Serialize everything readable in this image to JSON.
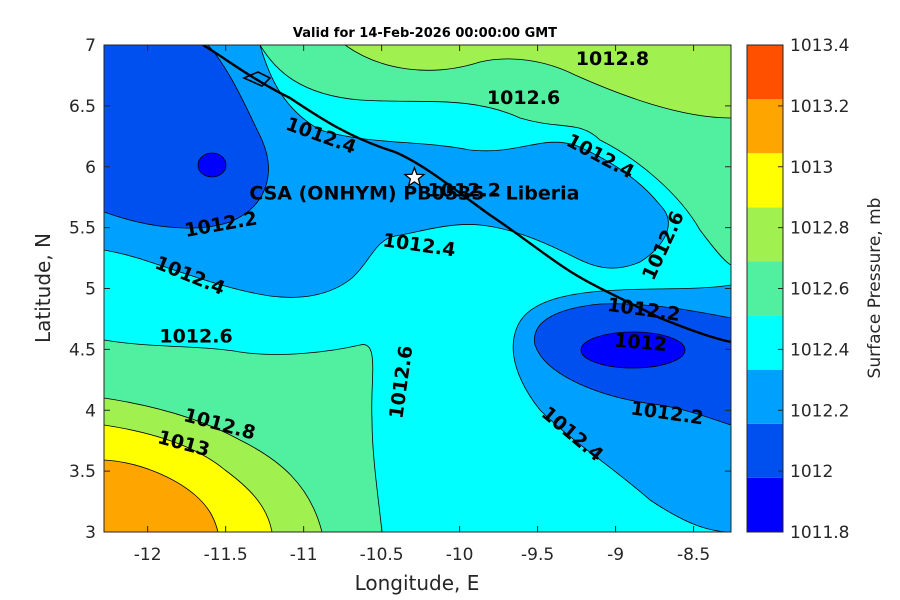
{
  "chart_data": {
    "type": "contour",
    "title": "Valid for 14-Feb-2026 00:00:00 GMT",
    "xlabel": "Longitude, E",
    "ylabel": "Latitude, N",
    "xlim": [
      -12.28,
      -8.26
    ],
    "ylim": [
      3,
      7
    ],
    "x_ticks": [
      "-12",
      "-11.5",
      "-11",
      "-10.5",
      "-10",
      "-9.5",
      "-9",
      "-8.5"
    ],
    "x_tick_values": [
      -12,
      -11.5,
      -11,
      -10.5,
      -10,
      -9.5,
      -9,
      -8.5
    ],
    "y_ticks": [
      "3",
      "3.5",
      "4",
      "4.5",
      "5",
      "5.5",
      "6",
      "6.5",
      "7"
    ],
    "y_tick_values": [
      3,
      3.5,
      4,
      4.5,
      5,
      5.5,
      6,
      6.5,
      7
    ],
    "colorbar": {
      "label": "Surface Pressure, mb",
      "levels": [
        1011.8,
        1012,
        1012.2,
        1012.4,
        1012.6,
        1012.8,
        1013,
        1013.2,
        1013.4
      ],
      "tick_labels": [
        "1011.8",
        "1012",
        "1012.2",
        "1012.4",
        "1012.6",
        "1012.8",
        "1013",
        "1013.2",
        "1013.4"
      ],
      "colors": [
        "#0000ff",
        "#0050f0",
        "#00a0ff",
        "#00ffff",
        "#50f0a0",
        "#a0f050",
        "#ffff00",
        "#ffa500",
        "#ff5000"
      ]
    },
    "contour_labels": [
      {
        "text": "1012.8",
        "lon": -9.02,
        "lat": 6.88,
        "rot": 0
      },
      {
        "text": "1012.6",
        "lon": -9.59,
        "lat": 6.56,
        "rot": 0
      },
      {
        "text": "1012.4",
        "lon": -10.89,
        "lat": 6.25,
        "rot": 20
      },
      {
        "text": "1012.4",
        "lon": -9.1,
        "lat": 6.08,
        "rot": 28
      },
      {
        "text": "1012.2",
        "lon": -9.97,
        "lat": 5.8,
        "rot": 0
      },
      {
        "text": "1012.2",
        "lon": -11.53,
        "lat": 5.52,
        "rot": -10
      },
      {
        "text": "1012.6",
        "lon": -8.69,
        "lat": 5.35,
        "rot": -65
      },
      {
        "text": "1012.4",
        "lon": -10.26,
        "lat": 5.35,
        "rot": 8
      },
      {
        "text": "1012.4",
        "lon": -11.73,
        "lat": 5.1,
        "rot": 22
      },
      {
        "text": "1012.2",
        "lon": -8.82,
        "lat": 4.82,
        "rot": 8
      },
      {
        "text": "1012",
        "lon": -8.84,
        "lat": 4.55,
        "rot": 5
      },
      {
        "text": "1012.6",
        "lon": -11.69,
        "lat": 4.6,
        "rot": 0
      },
      {
        "text": "1012.6",
        "lon": -10.37,
        "lat": 4.23,
        "rot": -82
      },
      {
        "text": "1012.2",
        "lon": -8.67,
        "lat": 3.97,
        "rot": 8
      },
      {
        "text": "1012.8",
        "lon": -11.54,
        "lat": 3.88,
        "rot": 15
      },
      {
        "text": "1013",
        "lon": -11.77,
        "lat": 3.72,
        "rot": 15
      },
      {
        "text": "1012.4",
        "lon": -9.28,
        "lat": 3.8,
        "rot": 40
      }
    ],
    "annotations": [
      {
        "text": "CSA (ONHYM) PB0535 - Liberia",
        "lon": -10.29,
        "lat": 5.91,
        "marker": "star"
      }
    ]
  }
}
